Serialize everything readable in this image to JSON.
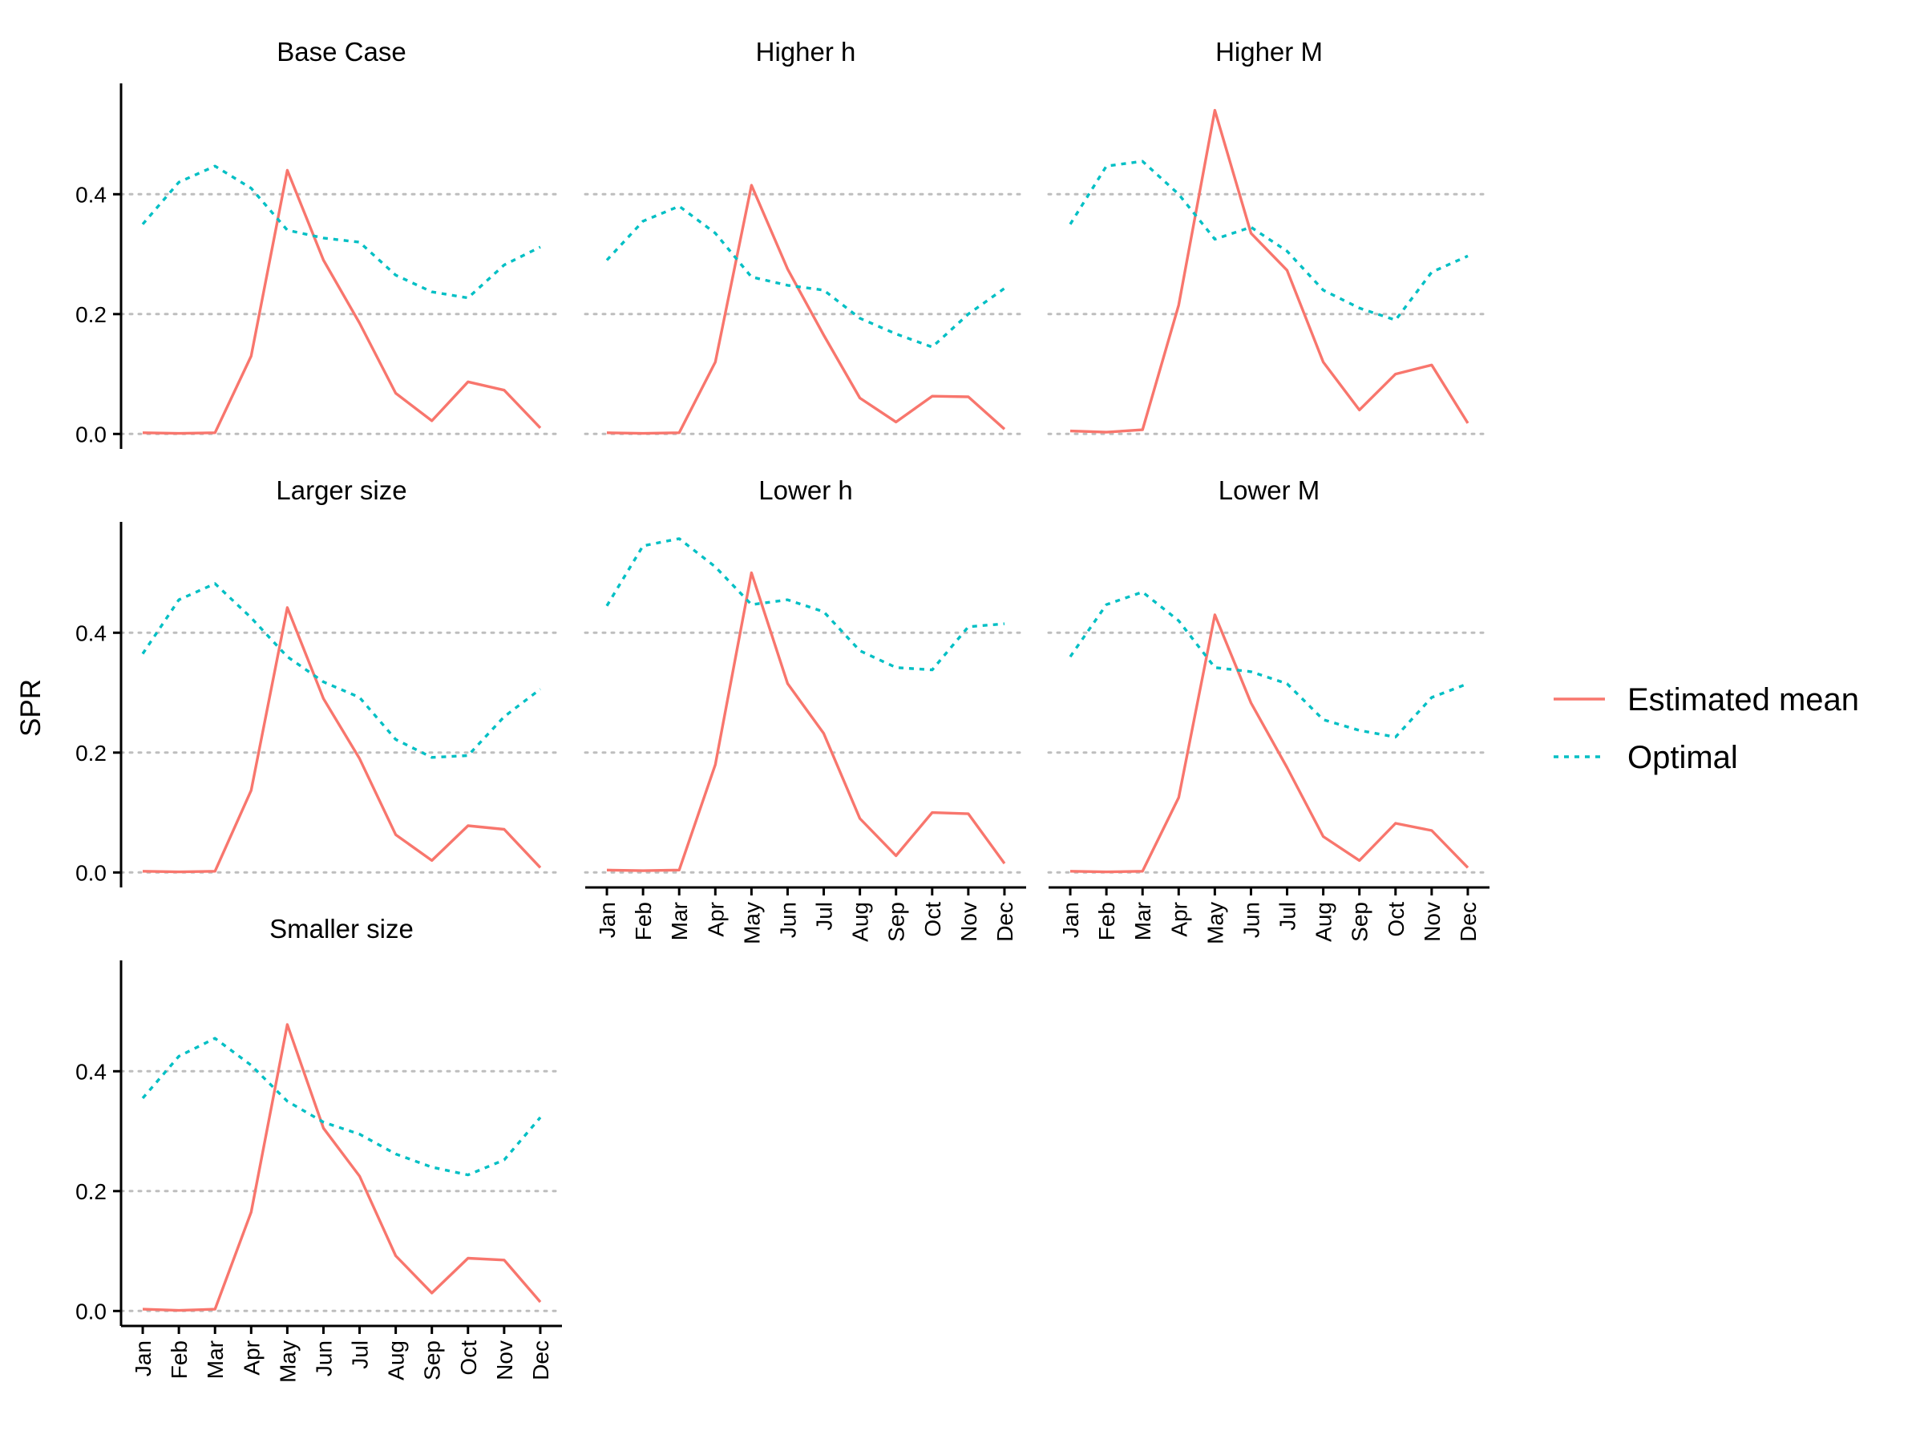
{
  "chart_data": {
    "type": "line",
    "facet": "wrap",
    "ylabel": "SPR",
    "xlabel": "",
    "x": [
      "Jan",
      "Feb",
      "Mar",
      "Apr",
      "May",
      "Jun",
      "Jul",
      "Aug",
      "Sep",
      "Oct",
      "Nov",
      "Dec"
    ],
    "ylim": [
      -0.025,
      0.585
    ],
    "yticks": [
      0.0,
      0.2,
      0.4
    ],
    "ytick_labels": [
      "0.0",
      "0.2",
      "0.4"
    ],
    "grid": "horizontal dotted at y ticks",
    "legend": {
      "placement": "right",
      "entries": [
        {
          "label": "Estimated mean",
          "color": "#F8766D",
          "style": "solid"
        },
        {
          "label": "Optimal",
          "color": "#00BFC4",
          "style": "dotted"
        }
      ]
    },
    "panels": [
      {
        "title": "Base Case",
        "series": [
          {
            "name": "Estimated mean",
            "values": [
              0.002,
              0.001,
              0.002,
              0.13,
              0.44,
              0.29,
              0.185,
              0.068,
              0.022,
              0.087,
              0.073,
              0.01
            ]
          },
          {
            "name": "Optimal",
            "values": [
              0.35,
              0.42,
              0.447,
              0.41,
              0.34,
              0.327,
              0.32,
              0.265,
              0.237,
              0.227,
              0.282,
              0.312
            ]
          }
        ]
      },
      {
        "title": "Higher h",
        "series": [
          {
            "name": "Estimated mean",
            "values": [
              0.002,
              0.001,
              0.002,
              0.12,
              0.415,
              0.275,
              0.165,
              0.06,
              0.02,
              0.063,
              0.062,
              0.008
            ]
          },
          {
            "name": "Optimal",
            "values": [
              0.29,
              0.355,
              0.38,
              0.335,
              0.262,
              0.248,
              0.24,
              0.193,
              0.167,
              0.145,
              0.2,
              0.243
            ]
          }
        ]
      },
      {
        "title": "Higher M",
        "series": [
          {
            "name": "Estimated mean",
            "values": [
              0.005,
              0.003,
              0.007,
              0.215,
              0.54,
              0.335,
              0.273,
              0.12,
              0.04,
              0.1,
              0.115,
              0.018
            ]
          },
          {
            "name": "Optimal",
            "values": [
              0.35,
              0.447,
              0.455,
              0.4,
              0.325,
              0.345,
              0.305,
              0.24,
              0.21,
              0.19,
              0.27,
              0.297
            ]
          }
        ]
      },
      {
        "title": "Larger size",
        "series": [
          {
            "name": "Estimated mean",
            "values": [
              0.002,
              0.001,
              0.002,
              0.137,
              0.442,
              0.29,
              0.19,
              0.063,
              0.02,
              0.078,
              0.072,
              0.008
            ]
          },
          {
            "name": "Optimal",
            "values": [
              0.365,
              0.455,
              0.482,
              0.425,
              0.36,
              0.318,
              0.292,
              0.222,
              0.192,
              0.195,
              0.26,
              0.306
            ]
          }
        ]
      },
      {
        "title": "Lower h",
        "series": [
          {
            "name": "Estimated mean",
            "values": [
              0.004,
              0.003,
              0.004,
              0.18,
              0.5,
              0.315,
              0.232,
              0.09,
              0.028,
              0.1,
              0.098,
              0.015
            ]
          },
          {
            "name": "Optimal",
            "values": [
              0.445,
              0.545,
              0.557,
              0.51,
              0.447,
              0.455,
              0.435,
              0.37,
              0.342,
              0.338,
              0.41,
              0.415
            ]
          }
        ]
      },
      {
        "title": "Lower M",
        "series": [
          {
            "name": "Estimated mean",
            "values": [
              0.002,
              0.001,
              0.002,
              0.125,
              0.43,
              0.283,
              0.175,
              0.06,
              0.02,
              0.082,
              0.07,
              0.008
            ]
          },
          {
            "name": "Optimal",
            "values": [
              0.36,
              0.447,
              0.468,
              0.42,
              0.342,
              0.335,
              0.315,
              0.255,
              0.237,
              0.226,
              0.292,
              0.315
            ]
          }
        ]
      },
      {
        "title": "Smaller size",
        "series": [
          {
            "name": "Estimated mean",
            "values": [
              0.003,
              0.001,
              0.003,
              0.165,
              0.478,
              0.305,
              0.225,
              0.092,
              0.03,
              0.088,
              0.085,
              0.015
            ]
          },
          {
            "name": "Optimal",
            "values": [
              0.355,
              0.425,
              0.455,
              0.41,
              0.35,
              0.315,
              0.295,
              0.262,
              0.24,
              0.227,
              0.252,
              0.323
            ]
          }
        ]
      }
    ]
  }
}
